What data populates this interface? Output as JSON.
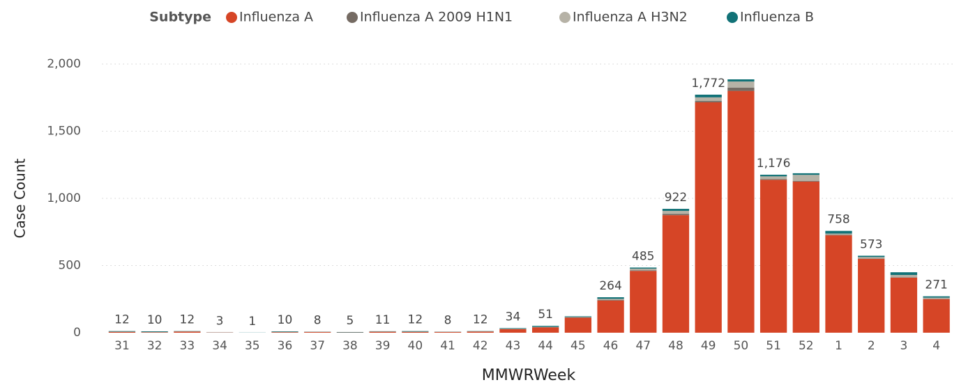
{
  "chart_data": {
    "type": "stacked_bar",
    "legend_title": "Subtype",
    "x_label": "MMWRWeek",
    "y_label": "Case Count",
    "categories": [
      "31",
      "32",
      "33",
      "34",
      "35",
      "36",
      "37",
      "38",
      "39",
      "40",
      "41",
      "42",
      "43",
      "44",
      "45",
      "46",
      "47",
      "48",
      "49",
      "50",
      "51",
      "52",
      "1",
      "2",
      "3",
      "4"
    ],
    "series": [
      {
        "name": "Influenza A",
        "color": "#d64526",
        "values": [
          6,
          3,
          8,
          2,
          0,
          4,
          5,
          2,
          7,
          6,
          5,
          8,
          26,
          40,
          112,
          240,
          460,
          875,
          1715,
          1800,
          1138,
          1125,
          725,
          550,
          410,
          250
        ]
      },
      {
        "name": "Influenza A 2009 H1N1",
        "color": "#756b63",
        "values": [
          1,
          1,
          1,
          0,
          0,
          1,
          1,
          0,
          1,
          1,
          1,
          1,
          2,
          2,
          2,
          4,
          5,
          10,
          10,
          25,
          6,
          5,
          3,
          3,
          3,
          3
        ]
      },
      {
        "name": "Influenza A H3N2",
        "color": "#b6b2a6",
        "values": [
          1,
          1,
          1,
          0,
          0,
          1,
          1,
          0,
          1,
          1,
          1,
          1,
          2,
          2,
          3,
          8,
          12,
          22,
          27,
          45,
          20,
          45,
          10,
          10,
          17,
          8
        ]
      },
      {
        "name": "Influenza B",
        "color": "#127277",
        "values": [
          4,
          5,
          2,
          1,
          1,
          4,
          1,
          3,
          2,
          4,
          1,
          2,
          4,
          7,
          5,
          12,
          8,
          15,
          20,
          16,
          12,
          12,
          20,
          10,
          20,
          10
        ]
      }
    ],
    "totals": [
      12,
      10,
      12,
      3,
      1,
      10,
      8,
      5,
      11,
      12,
      8,
      12,
      34,
      51,
      null,
      264,
      485,
      922,
      1772,
      null,
      1176,
      null,
      758,
      573,
      null,
      271
    ],
    "total_labels": [
      "12",
      "10",
      "12",
      "3",
      "1",
      "10",
      "8",
      "5",
      "11",
      "12",
      "8",
      "12",
      "34",
      "51",
      null,
      "264",
      "485",
      "922",
      "1,772",
      null,
      "1,176",
      null,
      "758",
      "573",
      null,
      "271"
    ],
    "ylim": [
      0,
      2000
    ],
    "yticks": [
      0,
      500,
      {
        "value": 1000,
        "label": "1,000"
      },
      {
        "value": 1500,
        "label": "1,500"
      },
      {
        "value": 2000,
        "label": "2,000"
      }
    ],
    "grid": true
  }
}
